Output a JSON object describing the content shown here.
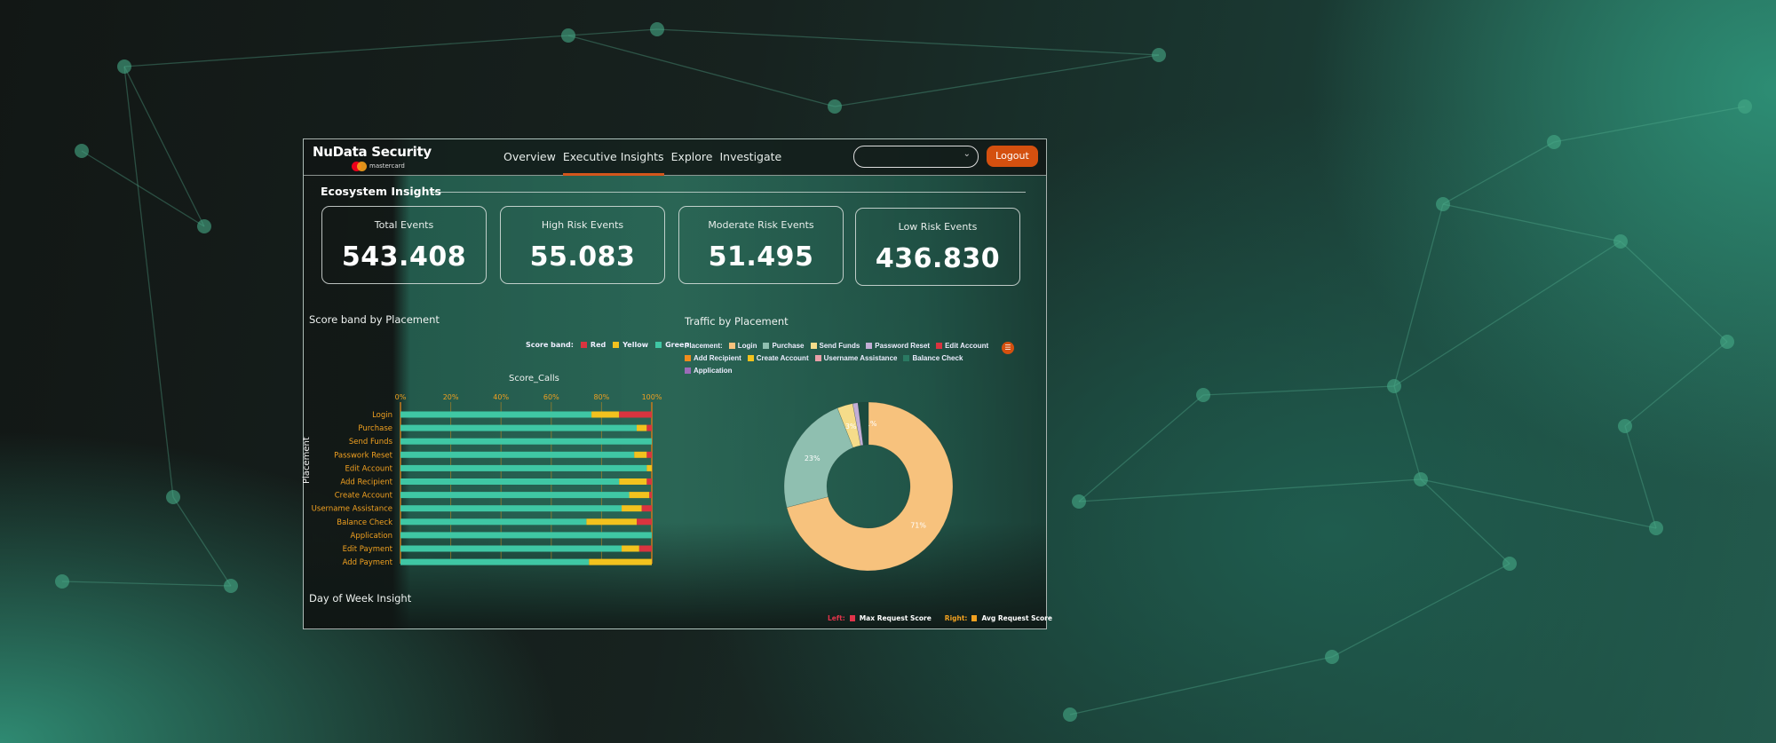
{
  "header": {
    "brand": "NuData Security",
    "sub_brand": "mastercard",
    "nav": [
      {
        "label": "Overview",
        "active": false
      },
      {
        "label": "Executive Insights",
        "active": true
      },
      {
        "label": "Explore",
        "active": false
      },
      {
        "label": "Investigate",
        "active": false
      }
    ],
    "select_value": "",
    "logout_label": "Logout",
    "accent": "#d4500f"
  },
  "section_title": "Ecosystem Insights",
  "kpis": [
    {
      "label": "Total Events",
      "value": "543.408"
    },
    {
      "label": "High Risk Events",
      "value": "55.083"
    },
    {
      "label": "Moderate Risk Events",
      "value": "51.495"
    },
    {
      "label": "Low Risk Events",
      "value": "436.830"
    }
  ],
  "day_of_week": {
    "title": "Day of Week Insight",
    "legend_left_prefix": "Left:",
    "legend_left": "Max Request Score",
    "legend_right_prefix": "Right:",
    "legend_right": "Avg Request Score",
    "left_color": "#e0344a",
    "right_color": "#f0a020"
  },
  "chart_data": [
    {
      "type": "bar",
      "stacked": true,
      "orientation": "horizontal",
      "title": "Score band by Placement",
      "xlabel": "Score_Calls",
      "ylabel": "Placement",
      "legend_title": "Score band:",
      "legend_position": "top-right",
      "x_ticks": [
        "0%",
        "20%",
        "40%",
        "60%",
        "80%",
        "100%"
      ],
      "xlim": [
        0,
        100
      ],
      "grid": true,
      "categories": [
        "Login",
        "Purchase",
        "Send Funds",
        "Passwork Reset",
        "Edit Account",
        "Add Recipient",
        "Create Account",
        "Username Assistance",
        "Balance Check",
        "Application",
        "Edit Payment",
        "Add Payment"
      ],
      "series": [
        {
          "name": "Green",
          "color": "#3fc7a4",
          "values": [
            76,
            94,
            100,
            93,
            98,
            87,
            91,
            88,
            74,
            100,
            88,
            75
          ]
        },
        {
          "name": "Yellow",
          "color": "#f2c21e",
          "values": [
            11,
            4,
            0,
            5,
            2,
            11,
            8,
            8,
            20,
            0,
            7,
            25
          ]
        },
        {
          "name": "Red",
          "color": "#d9343f",
          "values": [
            13,
            2,
            0,
            2,
            0,
            2,
            1,
            4,
            6,
            0,
            5,
            0
          ]
        }
      ]
    },
    {
      "type": "pie",
      "donut": true,
      "title": "Traffic by Placement",
      "legend_title": "Placement:",
      "legend_position": "top",
      "legend": [
        {
          "name": "Login",
          "color": "#f7c27d"
        },
        {
          "name": "Purchase",
          "color": "#8fbfb0"
        },
        {
          "name": "Send Funds",
          "color": "#f5dc8a"
        },
        {
          "name": "Password Reset",
          "color": "#c3aed6"
        },
        {
          "name": "Edit Account",
          "color": "#d9343f"
        },
        {
          "name": "Add Recipient",
          "color": "#f08c1c"
        },
        {
          "name": "Create Account",
          "color": "#f2c21e"
        },
        {
          "name": "Username Assistance",
          "color": "#e8a0a8"
        },
        {
          "name": "Balance Check",
          "color": "#2a7a62"
        },
        {
          "name": "Application",
          "color": "#9b6bb8"
        }
      ],
      "slices": [
        {
          "name": "Login",
          "value": 71,
          "label": "71%"
        },
        {
          "name": "Purchase",
          "value": 23,
          "label": "23%"
        },
        {
          "name": "Send Funds",
          "value": 3,
          "label": "3%"
        },
        {
          "name": "Password Reset",
          "value": 1,
          "label": "1%"
        },
        {
          "name": "Balance Check",
          "value": 2,
          "label": ""
        }
      ]
    }
  ]
}
